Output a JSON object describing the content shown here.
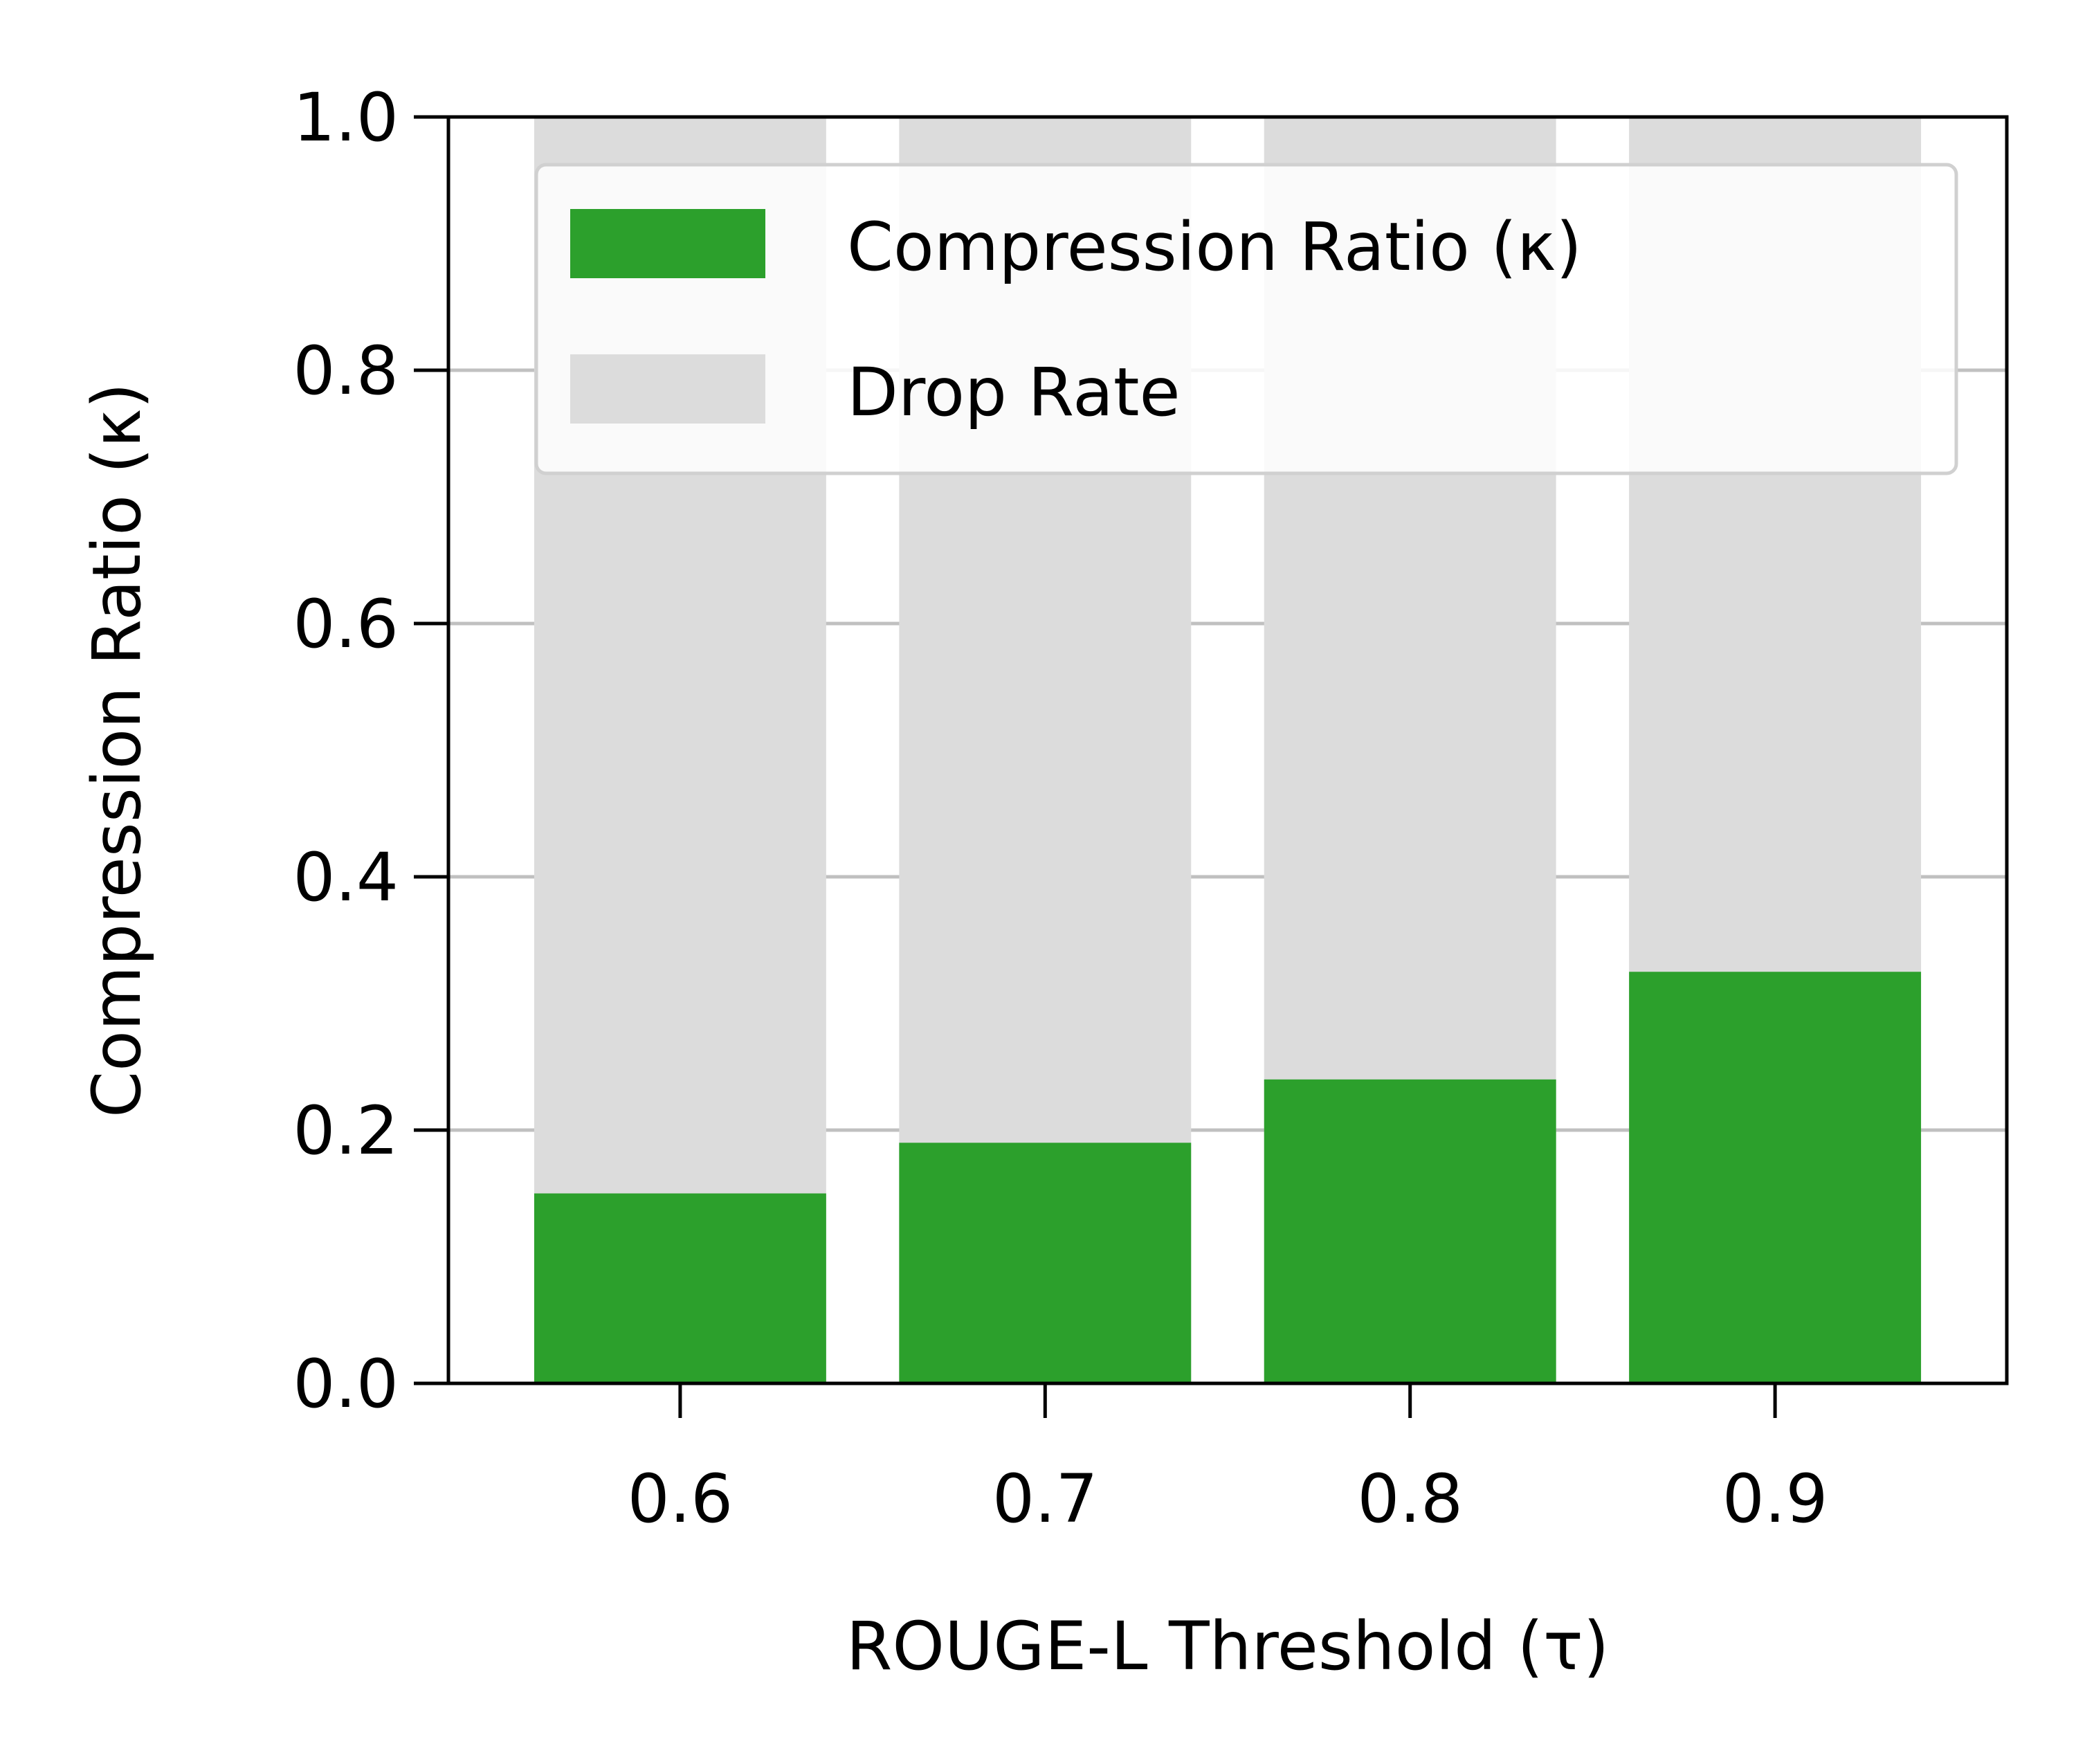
{
  "chart_data": {
    "type": "bar",
    "xlabel": "ROUGE-L Threshold (τ)",
    "ylabel": "Compression Ratio (κ)",
    "categories": [
      "0.6",
      "0.7",
      "0.8",
      "0.9"
    ],
    "series": [
      {
        "name": "Compression Ratio (κ)",
        "values": [
          0.15,
          0.19,
          0.24,
          0.325
        ],
        "color": "#2ca02c"
      },
      {
        "name": "Drop Rate",
        "values": [
          1.0,
          1.0,
          1.0,
          1.0
        ],
        "color": "#dcdcdc"
      }
    ],
    "ylim": [
      0,
      1.0
    ],
    "yticks": [
      "0.0",
      "0.2",
      "0.4",
      "0.6",
      "0.8",
      "1.0"
    ],
    "grid": "y",
    "legend": "top-right"
  }
}
